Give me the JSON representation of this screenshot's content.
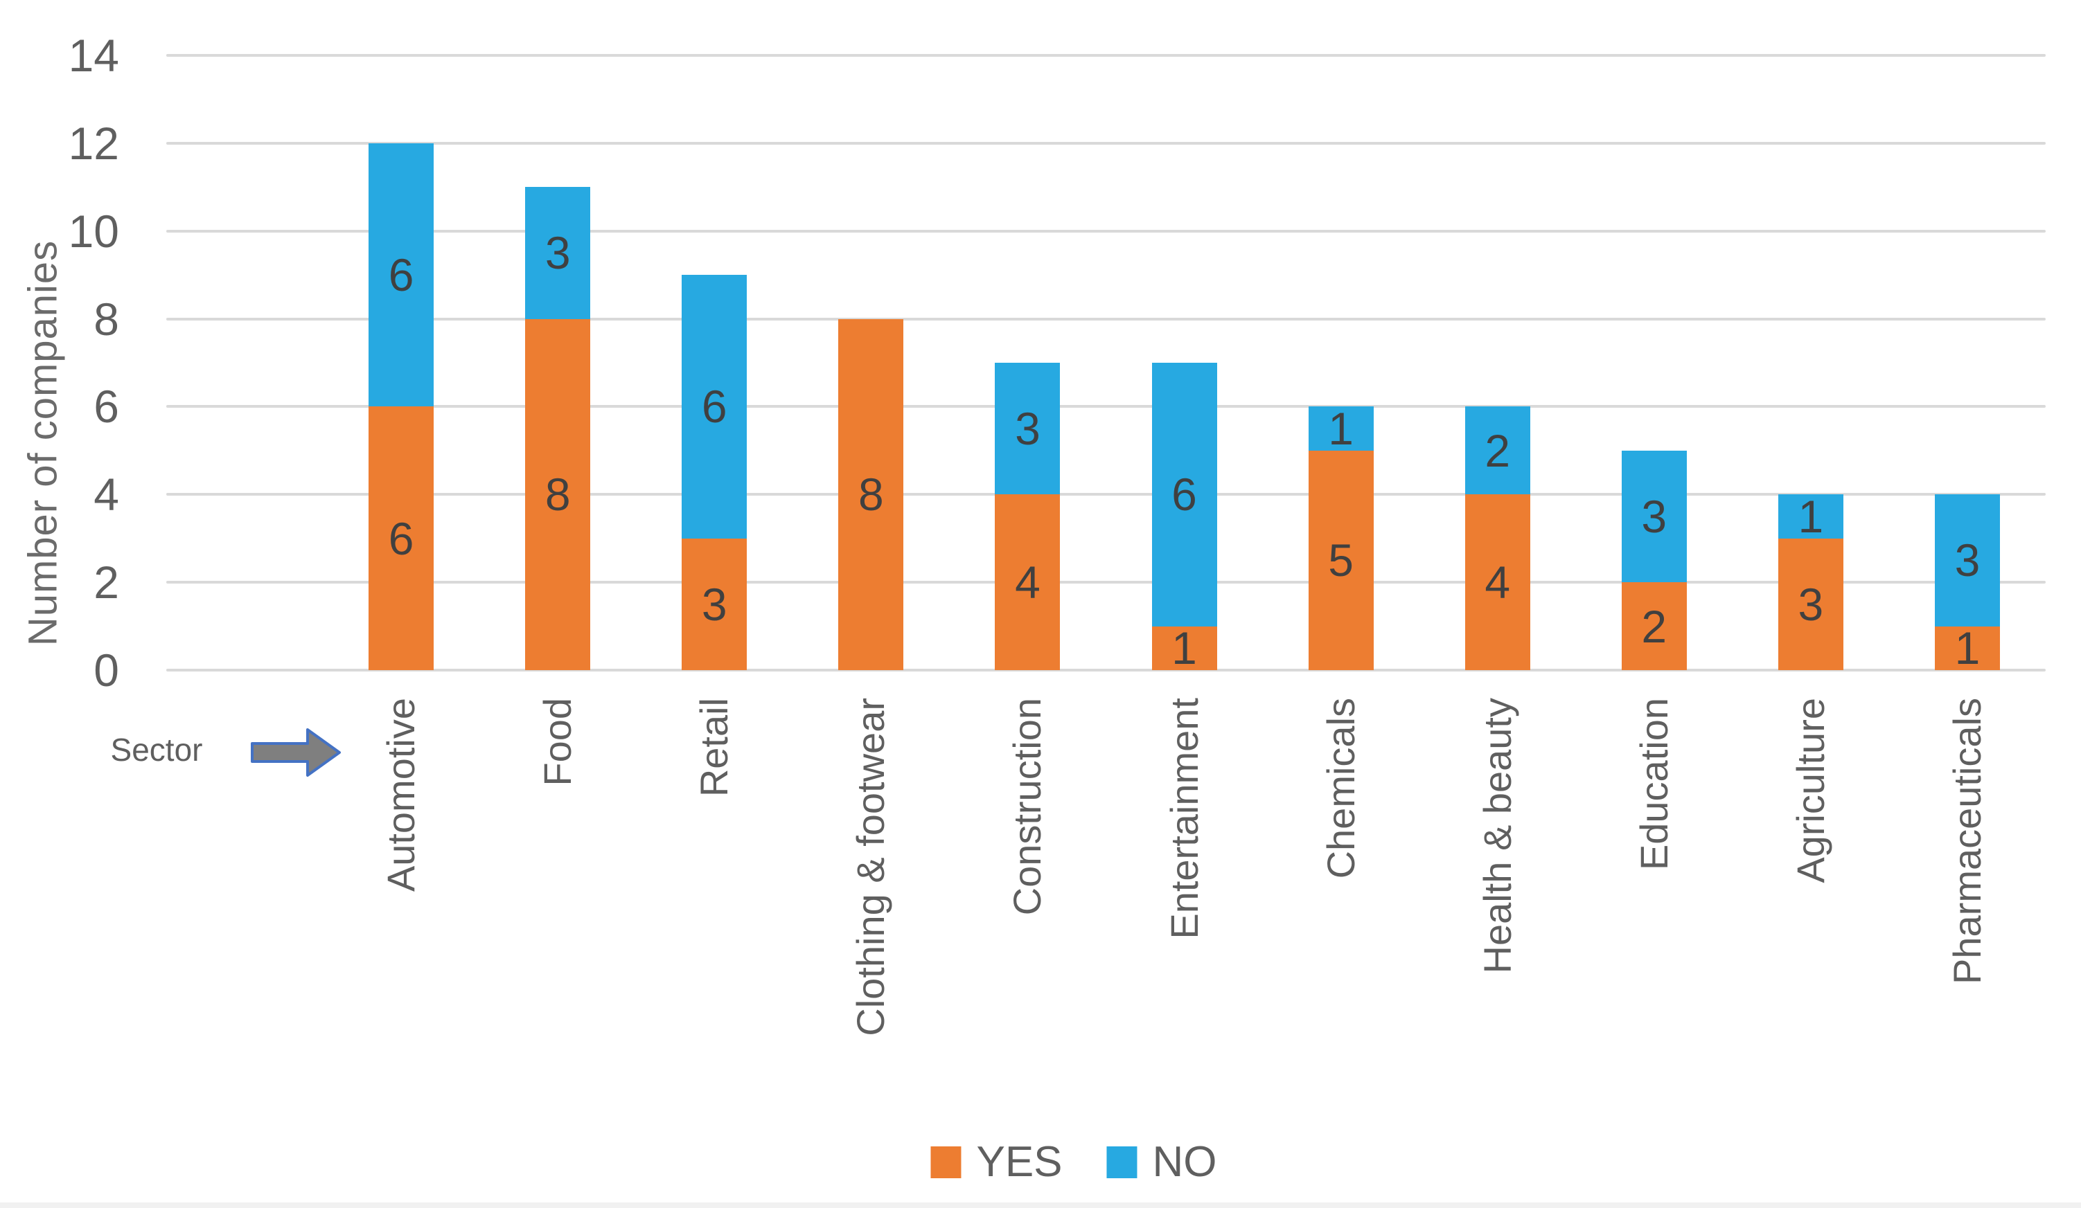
{
  "chart_data": {
    "type": "bar",
    "stacked": true,
    "title": "",
    "ylabel": "Number of companies",
    "xlabel": "Sector",
    "ylim": [
      0,
      14
    ],
    "ytick_step": 2,
    "grid": true,
    "legend_position": "bottom",
    "categories": [
      "Automotive",
      "Food",
      "Retail",
      "Clothing & footwear",
      "Construction",
      "Entertainment",
      "Chemicals",
      "Health & beauty",
      "Education",
      "Agriculture",
      "Pharmaceuticals"
    ],
    "series": [
      {
        "name": "YES",
        "color": "#ED7D31",
        "values": [
          6,
          8,
          3,
          8,
          4,
          1,
          5,
          4,
          2,
          3,
          1
        ]
      },
      {
        "name": "NO",
        "color": "#27A9E1",
        "values": [
          6,
          3,
          6,
          0,
          3,
          6,
          1,
          2,
          3,
          1,
          3
        ]
      }
    ],
    "totals": [
      12,
      11,
      9,
      8,
      7,
      7,
      6,
      6,
      5,
      4,
      4
    ],
    "data_labels_shown": true,
    "colors": {
      "gridline": "#D9D9D9",
      "axis_text": "#5F5F5F",
      "data_label": "#404040",
      "arrow_fill": "#7F7F7F",
      "arrow_stroke": "#4472C4"
    }
  },
  "annotations": {
    "sector_label": "Sector"
  }
}
